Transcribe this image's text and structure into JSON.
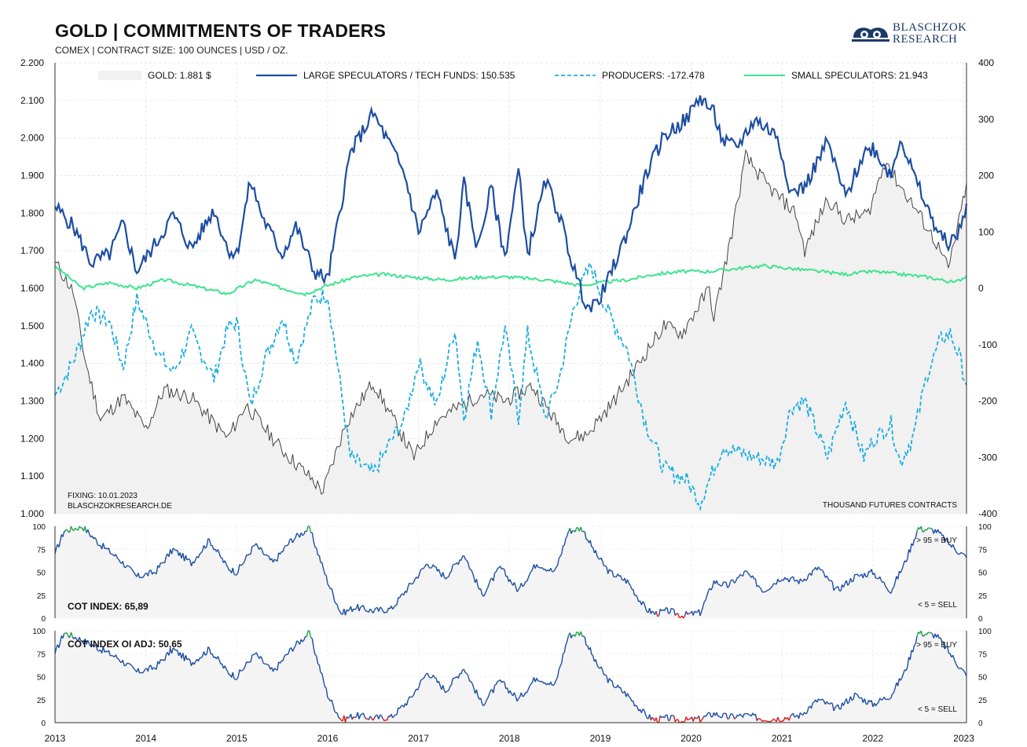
{
  "header": {
    "title": "GOLD | COMMITMENTS OF TRADERS",
    "subtitle": "COMEX | CONTRACT SIZE: 100 OUNCES | USD / OZ.",
    "logo_line1": "BLASCHZOK",
    "logo_line2": "RESEARCH"
  },
  "notes": {
    "fixing": "FIXING: 10.01.2023",
    "source": "BLASCHZOKRESEARCH.DE",
    "units": "THOUSAND  FUTURES  CONTRACTS"
  },
  "colors": {
    "gold": "#444444",
    "gold_fill": "#f1f1f1",
    "large_specs": "#1c4da1",
    "producers": "#19aee0",
    "small_specs": "#3fe38e",
    "index_line": "#1c4da1",
    "buy": "#1fa347",
    "sell": "#e01818"
  },
  "chart_data": [
    {
      "type": "line",
      "title": "GOLD | COMMITMENTS OF TRADERS",
      "x_ticks": [
        "2013",
        "2014",
        "2015",
        "2016",
        "2017",
        "2018",
        "2019",
        "2020",
        "2021",
        "2022",
        "2023"
      ],
      "x_range": [
        2013.0,
        2023.03
      ],
      "y_left": {
        "label": "",
        "range": [
          1000,
          2200
        ],
        "ticks": [
          "1.000",
          "1.100",
          "1.200",
          "1.300",
          "1.400",
          "1.500",
          "1.600",
          "1.700",
          "1.800",
          "1.900",
          "2.000",
          "2.100",
          "2.200"
        ]
      },
      "y_right": {
        "label": "THOUSAND FUTURES CONTRACTS",
        "range": [
          -400,
          400
        ],
        "ticks": [
          "-400",
          "-300",
          "-200",
          "-100",
          "0",
          "100",
          "200",
          "300",
          "400"
        ]
      },
      "grid": true,
      "legend_position": "top",
      "legend": [
        {
          "key": "gold",
          "label": "GOLD: 1.881 $"
        },
        {
          "key": "large",
          "label": "LARGE SPECULATORS / TECH FUNDS: 150.535"
        },
        {
          "key": "producers",
          "label": "PRODUCERS: -172.478"
        },
        {
          "key": "small",
          "label": "SMALL SPECULATORS: 21.943"
        }
      ],
      "series": [
        {
          "name": "GOLD",
          "axis": "left",
          "style": "area",
          "x": [
            2013.0,
            2013.2,
            2013.33,
            2013.5,
            2013.75,
            2014.0,
            2014.2,
            2014.5,
            2014.9,
            2015.1,
            2015.5,
            2015.75,
            2015.95,
            2016.2,
            2016.5,
            2016.7,
            2016.95,
            2017.2,
            2017.7,
            2017.95,
            2018.25,
            2018.5,
            2018.67,
            2018.85,
            2019.15,
            2019.45,
            2019.7,
            2019.9,
            2020.2,
            2020.25,
            2020.45,
            2020.6,
            2020.85,
            2021.15,
            2021.25,
            2021.5,
            2021.7,
            2021.95,
            2022.15,
            2022.2,
            2022.5,
            2022.7,
            2022.83,
            2022.95,
            2023.03
          ],
          "y": [
            1670,
            1590,
            1410,
            1250,
            1310,
            1225,
            1330,
            1310,
            1200,
            1290,
            1170,
            1110,
            1060,
            1240,
            1350,
            1260,
            1150,
            1250,
            1320,
            1300,
            1340,
            1250,
            1200,
            1210,
            1300,
            1410,
            1500,
            1480,
            1600,
            1520,
            1750,
            1950,
            1870,
            1800,
            1700,
            1840,
            1780,
            1800,
            1950,
            1910,
            1800,
            1720,
            1650,
            1780,
            1881
          ]
        },
        {
          "name": "LARGE SPECULATORS / TECH FUNDS",
          "axis": "right",
          "style": "solid",
          "x": [
            2013.0,
            2013.2,
            2013.4,
            2013.6,
            2013.75,
            2013.9,
            2014.15,
            2014.3,
            2014.5,
            2014.75,
            2014.9,
            2015.0,
            2015.15,
            2015.3,
            2015.5,
            2015.65,
            2015.85,
            2016.0,
            2016.25,
            2016.5,
            2016.7,
            2016.85,
            2017.0,
            2017.2,
            2017.4,
            2017.5,
            2017.65,
            2017.8,
            2017.95,
            2018.1,
            2018.2,
            2018.4,
            2018.55,
            2018.7,
            2018.8,
            2018.9,
            2019.05,
            2019.3,
            2019.5,
            2019.7,
            2019.95,
            2020.1,
            2020.25,
            2020.35,
            2020.5,
            2020.7,
            2020.95,
            2021.1,
            2021.25,
            2021.5,
            2021.7,
            2021.9,
            2022.0,
            2022.2,
            2022.3,
            2022.45,
            2022.6,
            2022.75,
            2022.85,
            2022.95,
            2023.03
          ],
          "y": [
            145,
            110,
            45,
            60,
            115,
            30,
            90,
            130,
            70,
            140,
            70,
            60,
            190,
            120,
            60,
            110,
            30,
            15,
            240,
            310,
            250,
            200,
            100,
            170,
            50,
            185,
            70,
            180,
            55,
            210,
            60,
            190,
            130,
            40,
            -10,
            -40,
            0,
            100,
            200,
            270,
            300,
            340,
            310,
            260,
            250,
            300,
            270,
            170,
            180,
            260,
            160,
            240,
            250,
            200,
            270,
            200,
            140,
            90,
            80,
            100,
            150
          ]
        },
        {
          "name": "PRODUCERS",
          "axis": "right",
          "style": "dashed",
          "x": [
            2013.0,
            2013.2,
            2013.4,
            2013.6,
            2013.75,
            2013.9,
            2014.15,
            2014.3,
            2014.5,
            2014.75,
            2014.9,
            2015.0,
            2015.15,
            2015.3,
            2015.5,
            2015.65,
            2015.85,
            2016.0,
            2016.25,
            2016.5,
            2016.7,
            2016.85,
            2017.0,
            2017.2,
            2017.4,
            2017.5,
            2017.65,
            2017.8,
            2017.95,
            2018.1,
            2018.2,
            2018.4,
            2018.55,
            2018.7,
            2018.8,
            2018.9,
            2019.05,
            2019.3,
            2019.5,
            2019.7,
            2019.95,
            2020.1,
            2020.25,
            2020.35,
            2020.5,
            2020.7,
            2020.95,
            2021.1,
            2021.25,
            2021.5,
            2021.7,
            2021.9,
            2022.0,
            2022.2,
            2022.3,
            2022.45,
            2022.6,
            2022.75,
            2022.85,
            2022.95,
            2023.03
          ],
          "y": [
            -190,
            -130,
            -40,
            -60,
            -140,
            -20,
            -120,
            -150,
            -80,
            -160,
            -70,
            -60,
            -210,
            -130,
            -50,
            -130,
            -20,
            -10,
            -300,
            -330,
            -270,
            -230,
            -130,
            -210,
            -70,
            -230,
            -90,
            -220,
            -70,
            -230,
            -80,
            -230,
            -160,
            -40,
            10,
            40,
            -30,
            -110,
            -240,
            -320,
            -340,
            -380,
            -320,
            -280,
            -290,
            -300,
            -310,
            -210,
            -200,
            -300,
            -200,
            -300,
            -270,
            -240,
            -310,
            -260,
            -150,
            -90,
            -80,
            -120,
            -172
          ]
        },
        {
          "name": "SMALL SPECULATORS",
          "axis": "right",
          "style": "solid",
          "x": [
            2013.0,
            2013.3,
            2013.6,
            2013.9,
            2014.2,
            2014.5,
            2014.9,
            2015.2,
            2015.5,
            2015.75,
            2016.0,
            2016.3,
            2016.6,
            2016.9,
            2017.3,
            2017.7,
            2018.0,
            2018.4,
            2018.8,
            2019.0,
            2019.3,
            2019.6,
            2019.9,
            2020.2,
            2020.5,
            2020.8,
            2021.1,
            2021.4,
            2021.7,
            2022.0,
            2022.3,
            2022.6,
            2022.9,
            2023.03
          ],
          "y": [
            40,
            0,
            10,
            0,
            15,
            5,
            -10,
            15,
            0,
            -10,
            5,
            20,
            25,
            20,
            15,
            20,
            20,
            15,
            5,
            10,
            15,
            25,
            30,
            30,
            35,
            40,
            35,
            30,
            25,
            30,
            25,
            20,
            10,
            22
          ]
        }
      ]
    },
    {
      "type": "line",
      "title": "COT INDEX: 65,89",
      "y_range": [
        0,
        100
      ],
      "y_ticks": [
        "0",
        "25",
        "50",
        "75",
        "100"
      ],
      "annotations": [
        "> 95 = BUY",
        "< 5 = SELL"
      ],
      "x": [
        2013.0,
        2013.1,
        2013.3,
        2013.5,
        2013.7,
        2013.9,
        2014.1,
        2014.3,
        2014.5,
        2014.7,
        2014.9,
        2015.0,
        2015.2,
        2015.4,
        2015.6,
        2015.8,
        2016.0,
        2016.15,
        2016.3,
        2016.5,
        2016.7,
        2016.9,
        2017.1,
        2017.3,
        2017.5,
        2017.7,
        2017.9,
        2018.1,
        2018.3,
        2018.5,
        2018.65,
        2018.8,
        2018.95,
        2019.1,
        2019.3,
        2019.5,
        2019.6,
        2019.75,
        2019.9,
        2020.1,
        2020.25,
        2020.4,
        2020.6,
        2020.8,
        2021.0,
        2021.2,
        2021.4,
        2021.6,
        2021.8,
        2022.0,
        2022.2,
        2022.35,
        2022.5,
        2022.7,
        2022.85,
        2023.03
      ],
      "y": [
        70,
        95,
        100,
        80,
        65,
        45,
        50,
        75,
        60,
        85,
        55,
        50,
        80,
        60,
        85,
        98,
        40,
        5,
        12,
        8,
        10,
        35,
        60,
        45,
        70,
        25,
        55,
        30,
        60,
        50,
        95,
        98,
        70,
        50,
        40,
        10,
        5,
        8,
        3,
        6,
        40,
        35,
        50,
        30,
        45,
        40,
        55,
        30,
        45,
        50,
        30,
        60,
        98,
        95,
        80,
        65.89
      ]
    },
    {
      "type": "line",
      "title": "COT INDEX OI ADJ: 50,65",
      "y_range": [
        0,
        100
      ],
      "y_ticks": [
        "0",
        "25",
        "50",
        "75",
        "100"
      ],
      "annotations": [
        "> 95 = BUY",
        "< 5 = SELL"
      ],
      "x": [
        2013.0,
        2013.1,
        2013.3,
        2013.5,
        2013.7,
        2013.9,
        2014.1,
        2014.3,
        2014.5,
        2014.7,
        2014.9,
        2015.0,
        2015.2,
        2015.4,
        2015.6,
        2015.8,
        2016.0,
        2016.15,
        2016.3,
        2016.5,
        2016.7,
        2016.9,
        2017.1,
        2017.3,
        2017.5,
        2017.7,
        2017.9,
        2018.1,
        2018.3,
        2018.5,
        2018.65,
        2018.8,
        2018.95,
        2019.1,
        2019.3,
        2019.5,
        2019.6,
        2019.75,
        2019.9,
        2020.1,
        2020.25,
        2020.4,
        2020.6,
        2020.8,
        2021.0,
        2021.2,
        2021.4,
        2021.6,
        2021.8,
        2022.0,
        2022.2,
        2022.35,
        2022.5,
        2022.7,
        2022.85,
        2023.03
      ],
      "y": [
        75,
        98,
        90,
        80,
        70,
        55,
        60,
        80,
        65,
        80,
        55,
        50,
        75,
        55,
        80,
        98,
        30,
        3,
        8,
        5,
        6,
        25,
        55,
        35,
        60,
        20,
        45,
        25,
        50,
        40,
        95,
        98,
        65,
        45,
        30,
        8,
        3,
        5,
        2,
        4,
        10,
        6,
        8,
        4,
        5,
        8,
        25,
        15,
        30,
        20,
        30,
        55,
        98,
        95,
        75,
        50.65
      ]
    }
  ]
}
